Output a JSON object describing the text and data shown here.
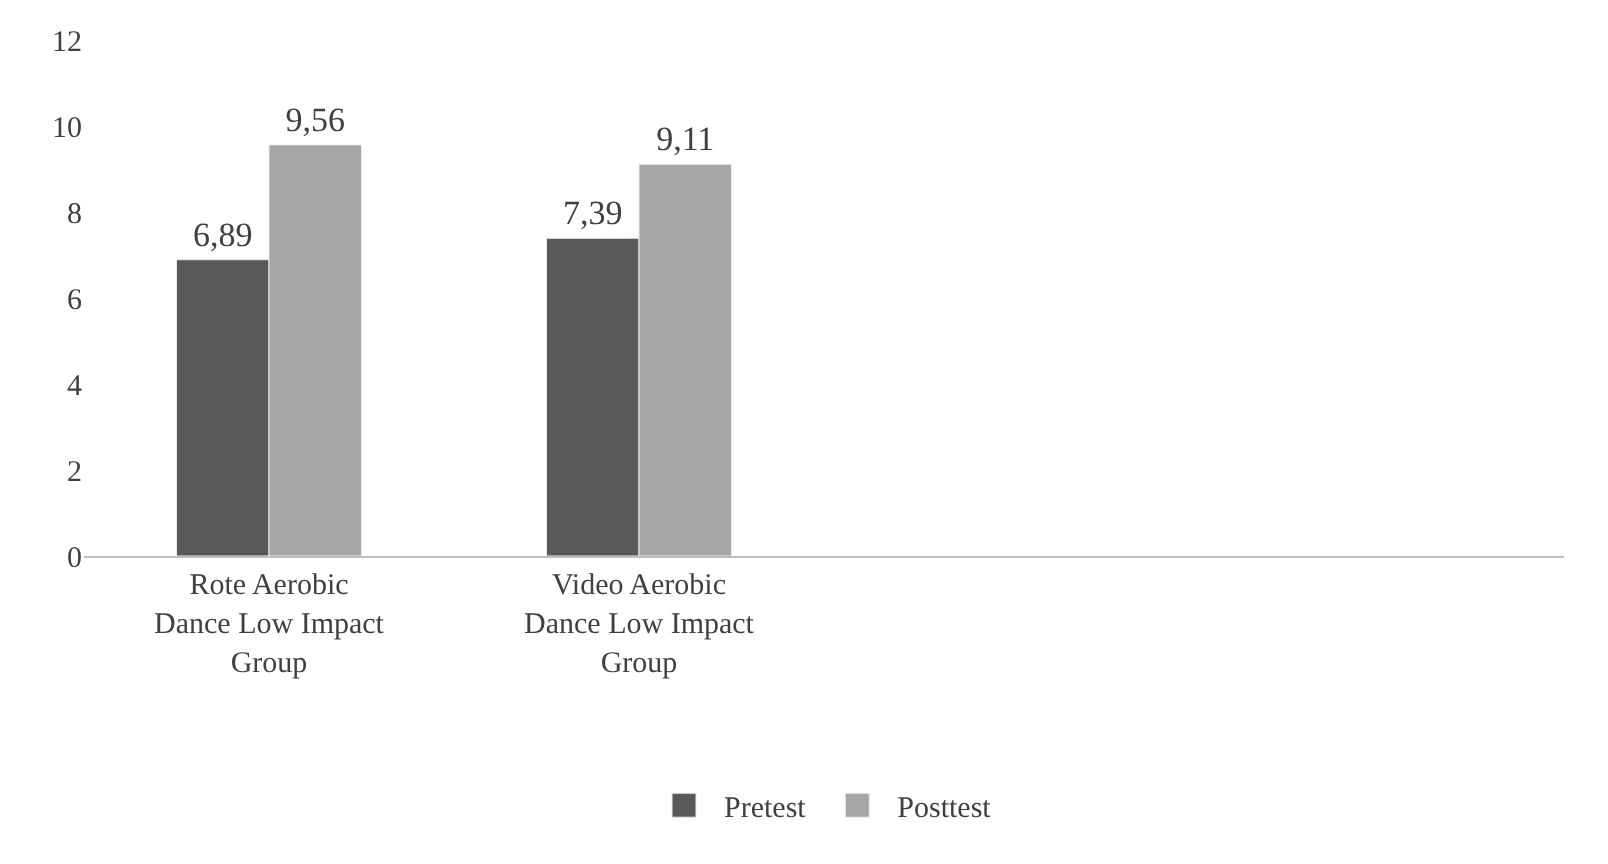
{
  "chart_data": {
    "type": "bar",
    "categories": [
      "Rote Aerobic Dance Low Impact Group",
      "Video Aerobic Dance Low Impact Group",
      null,
      null
    ],
    "series": [
      {
        "name": "Pretest",
        "color": "#595959",
        "values": [
          6.89,
          7.39,
          null,
          null
        ],
        "value_labels": [
          "6,89",
          "7,39",
          null,
          null
        ]
      },
      {
        "name": "Posttest",
        "color": "#a6a6a6",
        "values": [
          9.56,
          9.11,
          null,
          null
        ],
        "value_labels": [
          "9,56",
          "9,11",
          null,
          null
        ]
      }
    ],
    "ylim": [
      0,
      12
    ],
    "yticks": [
      0,
      2,
      4,
      6,
      8,
      10,
      12
    ],
    "legend": "bottom"
  }
}
